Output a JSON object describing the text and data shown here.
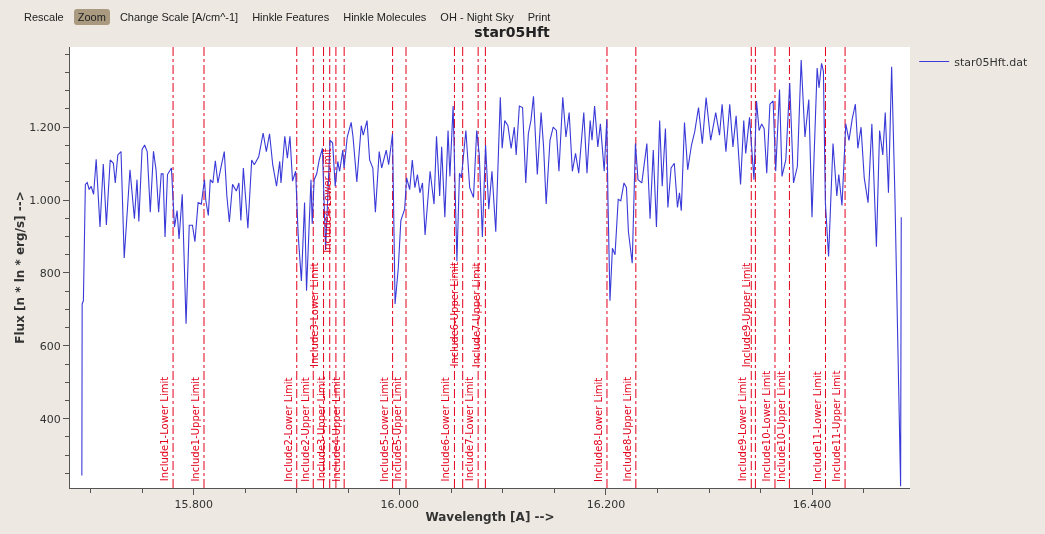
{
  "chart_data": {
    "type": "line",
    "title": "star05Hft",
    "xlabel": "Wavelength [A] -->",
    "ylabel": "Flux [n * ln * erg/s] -->",
    "annotations": [
      "Rescale",
      "Zoom",
      "Change Scale [A/cm^-1]",
      "Hinkle Features",
      "Hinkle Molecules",
      "OH - Night Sky",
      "Print"
    ],
    "xlim": [
      15680,
      16495
    ],
    "ylim": [
      210,
      1420
    ],
    "xticks": [
      {
        "value": 15800,
        "label": "15.800"
      },
      {
        "value": 16000,
        "label": "16.000"
      },
      {
        "value": 16200,
        "label": "16.200"
      },
      {
        "value": 16400,
        "label": "16.400"
      }
    ],
    "yticks": [
      400,
      600,
      800,
      {
        "value": 1000,
        "label": "1.000"
      },
      {
        "value": 1200,
        "label": "1.200"
      }
    ],
    "grid": false,
    "legend": "top right",
    "marker": "none",
    "line_style": "solid",
    "series": [
      {
        "name": "star05Hft.dat",
        "color": "#3a3ad8",
        "x": [
          15691.5,
          15691.8,
          15693.0,
          15694.9,
          15696.7,
          15698.6,
          15700.5,
          15702.9,
          15705.4,
          15709.1,
          15712.3,
          15715.3,
          15719.0,
          15722.1,
          15723.9,
          15726.4,
          15729.5,
          15732.6,
          15735.7,
          15738.2,
          15742.5,
          15745.0,
          15746.8,
          15749.9,
          15752.4,
          15754.9,
          15757.9,
          15761.0,
          15763.5,
          15766.0,
          15768.5,
          15770.3,
          15772.2,
          15774.6,
          15778.4,
          15781.4,
          15783.9,
          15785.8,
          15788.9,
          15792.6,
          15795.7,
          15798.8,
          15801.2,
          15804.3,
          15807.4,
          15810.5,
          15811.8,
          15814.2,
          15816.1,
          15818.6,
          15821.0,
          15823.5,
          15826.6,
          15829.7,
          15832.2,
          15834.6,
          15837.7,
          15841.4,
          15843.9,
          15845.8,
          15848.2,
          15852.6,
          15856.3,
          15858.8,
          15863.1,
          15867.4,
          15870.5,
          15873.6,
          15876.7,
          15880.4,
          15883.5,
          15884.7,
          15888.4,
          15890.9,
          15893.4,
          15895.9,
          15898.9,
          15901.4,
          15904.5,
          15907.6,
          15909.5,
          15913.8,
          15915.0,
          15916.9,
          15919.4,
          15921.8,
          15924.9,
          15928.0,
          15932.3,
          15934.8,
          15937.3,
          15939.8,
          15941.6,
          15944.7,
          15945.9,
          15949.0,
          15952.8,
          15954.6,
          15958.3,
          15962.6,
          15964.5,
          15968.2,
          15970.7,
          15973.8,
          15976.3,
          15980.0,
          15982.4,
          15986.8,
          15989.2,
          15992.9,
          15995.4,
          15998.5,
          16001.0,
          16004.7,
          16006.6,
          16009.6,
          16012.1,
          16014.6,
          16017.1,
          16019.5,
          16022.0,
          16024.5,
          16029.4,
          16033.2,
          16035.6,
          16038.7,
          16040.6,
          16043.7,
          16046.8,
          16048.6,
          16051.7,
          16055.4,
          16057.9,
          16059.7,
          16064.1,
          16067.8,
          16071.5,
          16074.6,
          16077.1,
          16080.1,
          16083.2,
          16086.3,
          16089.4,
          16093.1,
          16097.5,
          16099.3,
          16101.8,
          16104.9,
          16108.0,
          16111.1,
          16112.9,
          16116.0,
          16119.1,
          16122.2,
          16124.7,
          16127.2,
          16129.7,
          16133.4,
          16137.1,
          16139.5,
          16142.0,
          16145.7,
          16148.8,
          16151.9,
          16154.4,
          16158.1,
          16161.2,
          16164.3,
          16167.4,
          16170.5,
          16173.6,
          16178.5,
          16181.6,
          16184.7,
          16186.5,
          16189.0,
          16192.1,
          16194.6,
          16198.3,
          16200.8,
          16202.0,
          16203.9,
          16206.3,
          16208.8,
          16211.9,
          16214.4,
          16217.5,
          16219.9,
          16221.8,
          16225.5,
          16228.6,
          16231.1,
          16234.8,
          16239.7,
          16242.8,
          16245.9,
          16249.0,
          16252.1,
          16254.6,
          16257.7,
          16260.1,
          16263.2,
          16266.3,
          16269.4,
          16271.3,
          16273.1,
          16276.2,
          16279.3,
          16283.0,
          16286.1,
          16289.8,
          16293.5,
          16297.2,
          16301.6,
          16306.5,
          16310.2,
          16312.7,
          16316.4,
          16320.1,
          16323.2,
          16326.3,
          16330.6,
          16333.7,
          16335.6,
          16339.3,
          16343.6,
          16346.1,
          16348.6,
          16351.1,
          16353.5,
          16356.0,
          16359.1,
          16362.2,
          16364.7,
          16368.4,
          16370.8,
          16374.5,
          16378.3,
          16382.0,
          16385.7,
          16389.4,
          16393.1,
          16396.8,
          16399.9,
          16404.9,
          16406.7,
          16409.2,
          16411.0,
          16412.9,
          16416.0,
          16420.3,
          16424.0,
          16425.9,
          16429.0,
          16432.7,
          16435.8,
          16438.9,
          16442.0,
          16444.4,
          16447.5,
          16450.6,
          16454.3,
          16458.0,
          16462.4,
          16465.5,
          16468.6,
          16471.0,
          16474.1,
          16477.2,
          16480.3,
          16485.9,
          16486.5
        ],
        "values": [
          244,
          715,
          724,
          1043,
          1048,
          1029,
          1038,
          1016,
          1112,
          926,
          1099,
          932,
          1110,
          1101,
          1047,
          1124,
          1133,
          841,
          975,
          1083,
          949,
          1056,
          941,
          1139,
          1151,
          1133,
          967,
          1134,
          1083,
          967,
          1072,
          1072,
          899,
          1070,
          1088,
          926,
          971,
          893,
          1016,
          661,
          931,
          931,
          886,
          993,
          989,
          1056,
          998,
          958,
          1056,
          1047,
          1108,
          1047,
          1092,
          1133,
          1011,
          940,
          1043,
          1025,
          1047,
          944,
          1088,
          923,
          1110,
          1097,
          1119,
          1184,
          1133,
          1182,
          1097,
          1038,
          1106,
          1047,
          1175,
          1115,
          1175,
          1052,
          1079,
          904,
          778,
          993,
          751,
          1056,
          935,
          1056,
          1072,
          1110,
          1142,
          863,
          1164,
          1157,
          1038,
          1106,
          1079,
          1137,
          1088,
          1173,
          1213,
          1173,
          1050,
          1204,
          1178,
          1218,
          1110,
          1088,
          967,
          1133,
          1088,
          1137,
          1097,
          1182,
          715,
          813,
          944,
          975,
          1061,
          1029,
          1110,
          1034,
          1070,
          1020,
          1047,
          904,
          1079,
          989,
          1175,
          1011,
          1146,
          953,
          1191,
          1065,
          1258,
          832,
          1074,
          1061,
          1191,
          1034,
          1007,
          1191,
          1124,
          899,
          1151,
          975,
          1079,
          913,
          1282,
          1142,
          1218,
          1204,
          1142,
          1200,
          1124,
          1258,
          1254,
          1047,
          1182,
          1218,
          1285,
          1070,
          1240,
          1146,
          989,
          1164,
          1200,
          1191,
          1079,
          1282,
          1173,
          1240,
          1079,
          1128,
          1074,
          1240,
          1074,
          1218,
          1164,
          1258,
          1146,
          1209,
          1079,
          1222,
          993,
          724,
          868,
          850,
          1002,
          998,
          1047,
          1034,
          913,
          827,
          1155,
          1056,
          1047,
          1155,
          949,
          1137,
          926,
          1218,
          1038,
          1196,
          980,
          1088,
          1101,
          980,
          1020,
          971,
          1213,
          1083,
          1151,
          1187,
          1254,
          1155,
          1281,
          1164,
          1240,
          1178,
          1263,
          1133,
          1263,
          1146,
          1231,
          1043,
          1218,
          1128,
          1227,
          1056,
          1272,
          1191,
          1209,
          1196,
          1074,
          1263,
          1272,
          1079,
          1303,
          1065,
          1110,
          1321,
          1047,
          1092,
          1384,
          1173,
          1276,
          953,
          1362,
          1308,
          1375,
          1353,
          993,
          845,
          1155,
          1011,
          1070,
          985,
          1209,
          1164,
          1222,
          1263,
          1142,
          1200,
          1061,
          993,
          1209,
          872,
          1191,
          1124,
          1240,
          1020,
          1366,
          1020,
          215,
          953
        ]
      }
    ],
    "ref_lines": [
      {
        "axis": "x",
        "value": 15780,
        "label": "Include1-Lower Limit",
        "color": "#e3001b",
        "line_style": "dashed"
      },
      {
        "axis": "x",
        "value": 15810,
        "label": "Include1-Upper Limit",
        "color": "#e3001b",
        "line_style": "dashed"
      },
      {
        "axis": "x",
        "value": 15900,
        "label": "Include2-Lower Limit",
        "color": "#e3001b",
        "line_style": "dashed"
      },
      {
        "axis": "x",
        "value": 15916,
        "label": "Include2-Upper Limit",
        "color": "#e3001b",
        "line_style": "dashed"
      },
      {
        "axis": "x",
        "value": 15926,
        "label": "Include3-Lower Limit",
        "color": "#e3001b",
        "line_style": "dashed"
      },
      {
        "axis": "x",
        "value": 15932,
        "label": "Include3-Upper Limit",
        "color": "#e3001b",
        "line_style": "dashed"
      },
      {
        "axis": "x",
        "value": 15938,
        "label": "Include4-Lower Limit",
        "color": "#e3001b",
        "line_style": "dashed"
      },
      {
        "axis": "x",
        "value": 15946,
        "label": "Include4-Upper Limit",
        "color": "#e3001b",
        "line_style": "dashed"
      },
      {
        "axis": "x",
        "value": 15993,
        "label": "Include5-Lower Limit",
        "color": "#e3001b",
        "line_style": "dashed"
      },
      {
        "axis": "x",
        "value": 16006,
        "label": "Include5-Upper Limit",
        "color": "#e3001b",
        "line_style": "dashed"
      },
      {
        "axis": "x",
        "value": 16053,
        "label": "Include6-Lower Limit",
        "color": "#e3001b",
        "line_style": "dashed"
      },
      {
        "axis": "x",
        "value": 16061,
        "label": "Include6-Upper Limit",
        "color": "#e3001b",
        "line_style": "dashed"
      },
      {
        "axis": "x",
        "value": 16076,
        "label": "Include7-Lower Limit",
        "color": "#e3001b",
        "line_style": "dashed"
      },
      {
        "axis": "x",
        "value": 16083,
        "label": "Include7-Upper Limit",
        "color": "#e3001b",
        "line_style": "dashed"
      },
      {
        "axis": "x",
        "value": 16201,
        "label": "Include8-Lower Limit",
        "color": "#e3001b",
        "line_style": "dashed"
      },
      {
        "axis": "x",
        "value": 16229,
        "label": "Include8-Upper Limit",
        "color": "#e3001b",
        "line_style": "dashed"
      },
      {
        "axis": "x",
        "value": 16341,
        "label": "Include9-Lower Limit",
        "color": "#e3001b",
        "line_style": "dashed"
      },
      {
        "axis": "x",
        "value": 16345,
        "label": "Include9-Upper Limit",
        "color": "#e3001b",
        "line_style": "dashed"
      },
      {
        "axis": "x",
        "value": 16364,
        "label": "Include10-Lower Limit",
        "color": "#e3001b",
        "line_style": "dashed"
      },
      {
        "axis": "x",
        "value": 16378,
        "label": "Include10-Upper Limit",
        "color": "#e3001b",
        "line_style": "dashed"
      },
      {
        "axis": "x",
        "value": 16413,
        "label": "Include11-Lower Limit",
        "color": "#e3001b",
        "line_style": "dashed"
      },
      {
        "axis": "x",
        "value": 16432,
        "label": "Include11-Upper Limit",
        "color": "#e3001b",
        "line_style": "dashed"
      }
    ]
  }
}
